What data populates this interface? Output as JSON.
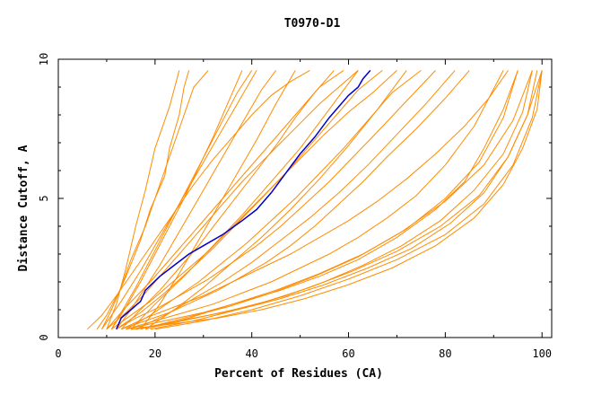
{
  "chart_data": {
    "type": "line",
    "title": "T0970-D1",
    "xlabel": "Percent of Residues (CA)",
    "ylabel": "Distance Cutoff, A",
    "xlim": [
      0,
      102
    ],
    "ylim": [
      0,
      10
    ],
    "x_ticks": [
      "0",
      "20",
      "40",
      "60",
      "80",
      "100"
    ],
    "y_ticks": [
      "0",
      "5",
      "10"
    ],
    "grid": false,
    "legend": "none",
    "colors": {
      "models": "#ff8c00",
      "highlight": "#0000cc"
    },
    "highlight_series": {
      "x": [
        12,
        13,
        15,
        17,
        18,
        21,
        24,
        27,
        30,
        34,
        38,
        41,
        44,
        47,
        50,
        53,
        56,
        58,
        60,
        62,
        63,
        64.5
      ],
      "y": [
        0.3,
        0.7,
        1.0,
        1.3,
        1.7,
        2.2,
        2.6,
        3.0,
        3.3,
        3.7,
        4.2,
        4.6,
        5.2,
        5.9,
        6.6,
        7.2,
        7.9,
        8.3,
        8.7,
        9.0,
        9.3,
        9.6
      ]
    },
    "series": [
      {
        "x": [
          6,
          9,
          12,
          16,
          20,
          24,
          28,
          32,
          36,
          40,
          44,
          48,
          52
        ],
        "y": [
          0.3,
          0.8,
          1.5,
          2.5,
          3.5,
          4.5,
          5.5,
          6.4,
          7.2,
          8.0,
          8.7,
          9.2,
          9.6
        ]
      },
      {
        "x": [
          8,
          10,
          13,
          15,
          18,
          20,
          22,
          24,
          26,
          28,
          31
        ],
        "y": [
          0.3,
          0.8,
          1.8,
          2.8,
          4.0,
          5.0,
          6.0,
          7.0,
          8.0,
          9.0,
          9.6
        ]
      },
      {
        "x": [
          9,
          11,
          14,
          17,
          19,
          22,
          23,
          25,
          26,
          27
        ],
        "y": [
          0.3,
          1.0,
          2.2,
          3.5,
          4.6,
          5.8,
          6.8,
          8.0,
          9.0,
          9.6
        ]
      },
      {
        "x": [
          10,
          12,
          14,
          16,
          18,
          20,
          23,
          25
        ],
        "y": [
          0.3,
          1.2,
          2.5,
          4.0,
          5.3,
          6.8,
          8.3,
          9.6
        ]
      },
      {
        "x": [
          10,
          14,
          18,
          22,
          26,
          30,
          34,
          38,
          42,
          46,
          50,
          54,
          58,
          62
        ],
        "y": [
          0.3,
          0.9,
          1.6,
          2.4,
          3.2,
          4.0,
          4.8,
          5.6,
          6.3,
          7.0,
          7.7,
          8.4,
          9.0,
          9.6
        ]
      },
      {
        "x": [
          11,
          15,
          19,
          23,
          27,
          31,
          35,
          39,
          43,
          47,
          51,
          55,
          60,
          65,
          70
        ],
        "y": [
          0.3,
          0.8,
          1.3,
          1.9,
          2.5,
          3.1,
          3.8,
          4.5,
          5.2,
          5.9,
          6.6,
          7.3,
          8.1,
          8.8,
          9.6
        ]
      },
      {
        "x": [
          11,
          13,
          16,
          19,
          22,
          25,
          28,
          31,
          34,
          37,
          40
        ],
        "y": [
          0.3,
          0.9,
          1.8,
          2.8,
          3.8,
          4.8,
          5.8,
          6.8,
          7.8,
          8.8,
          9.6
        ]
      },
      {
        "x": [
          12,
          15,
          18,
          21,
          24,
          27,
          30,
          33,
          36,
          39,
          42,
          45
        ],
        "y": [
          0.3,
          1.0,
          1.8,
          2.6,
          3.5,
          4.4,
          5.3,
          6.2,
          7.1,
          8.0,
          8.9,
          9.6
        ]
      },
      {
        "x": [
          12,
          16,
          21,
          26,
          31,
          36,
          41,
          46,
          51,
          56,
          61,
          66,
          72,
          78
        ],
        "y": [
          0.3,
          0.7,
          1.1,
          1.6,
          2.1,
          2.7,
          3.3,
          4.0,
          4.8,
          5.6,
          6.5,
          7.4,
          8.5,
          9.6
        ]
      },
      {
        "x": [
          13,
          18,
          23,
          28,
          33,
          38,
          43,
          48,
          53,
          58,
          63,
          68,
          74,
          80,
          85
        ],
        "y": [
          0.3,
          0.6,
          0.9,
          1.3,
          1.7,
          2.2,
          2.7,
          3.3,
          4.0,
          4.8,
          5.6,
          6.5,
          7.5,
          8.6,
          9.6
        ]
      },
      {
        "x": [
          13,
          17,
          21,
          25,
          29,
          33,
          37,
          41,
          45,
          49,
          53,
          57
        ],
        "y": [
          0.3,
          1.0,
          1.7,
          2.5,
          3.3,
          4.2,
          5.1,
          6.0,
          6.9,
          7.9,
          8.8,
          9.6
        ]
      },
      {
        "x": [
          14,
          20,
          26,
          32,
          38,
          44,
          50,
          56,
          62,
          68,
          74,
          80,
          86,
          92
        ],
        "y": [
          0.3,
          0.6,
          0.9,
          1.2,
          1.6,
          2.0,
          2.5,
          3.0,
          3.6,
          4.3,
          5.1,
          6.2,
          7.6,
          9.6
        ]
      },
      {
        "x": [
          14,
          22,
          30,
          38,
          46,
          54,
          62,
          70,
          78,
          84,
          88,
          92,
          95
        ],
        "y": [
          0.3,
          0.6,
          0.9,
          1.3,
          1.7,
          2.2,
          2.8,
          3.6,
          4.6,
          5.6,
          6.8,
          8.2,
          9.6
        ]
      },
      {
        "x": [
          15,
          23,
          31,
          39,
          47,
          55,
          63,
          71,
          79,
          86,
          92,
          96,
          98
        ],
        "y": [
          0.3,
          0.5,
          0.8,
          1.1,
          1.5,
          2.0,
          2.6,
          3.3,
          4.2,
          5.3,
          6.6,
          8.1,
          9.6
        ]
      },
      {
        "x": [
          15,
          24,
          33,
          42,
          51,
          60,
          69,
          78,
          86,
          92,
          96,
          99,
          100
        ],
        "y": [
          0.3,
          0.5,
          0.7,
          1.0,
          1.4,
          1.9,
          2.5,
          3.3,
          4.3,
          5.5,
          6.8,
          8.2,
          9.6
        ]
      },
      {
        "x": [
          16,
          25,
          34,
          43,
          52,
          61,
          70,
          79,
          87,
          93,
          97,
          99
        ],
        "y": [
          0.3,
          0.6,
          0.9,
          1.3,
          1.8,
          2.4,
          3.1,
          4.0,
          5.1,
          6.5,
          8.0,
          9.6
        ]
      },
      {
        "x": [
          16,
          22,
          28,
          34,
          40,
          46,
          52,
          58,
          64,
          70,
          76,
          82
        ],
        "y": [
          0.3,
          0.8,
          1.4,
          2.0,
          2.7,
          3.5,
          4.3,
          5.2,
          6.2,
          7.3,
          8.4,
          9.6
        ]
      },
      {
        "x": [
          17,
          21,
          25,
          29,
          33,
          37,
          41,
          45,
          49
        ],
        "y": [
          0.3,
          1.2,
          2.3,
          3.5,
          4.7,
          5.9,
          7.1,
          8.4,
          9.6
        ]
      },
      {
        "x": [
          17,
          26,
          35,
          44,
          53,
          62,
          71,
          80,
          88,
          94,
          98
        ],
        "y": [
          0.3,
          0.7,
          1.1,
          1.6,
          2.2,
          2.9,
          3.8,
          4.9,
          6.2,
          7.8,
          9.6
        ]
      },
      {
        "x": [
          18,
          27,
          36,
          45,
          54,
          63,
          72,
          80,
          87,
          92,
          95
        ],
        "y": [
          0.3,
          0.7,
          1.2,
          1.7,
          2.3,
          3.0,
          3.9,
          5.0,
          6.3,
          7.9,
          9.6
        ]
      },
      {
        "x": [
          18,
          24,
          30,
          36,
          42,
          48,
          54,
          60,
          66,
          72
        ],
        "y": [
          0.3,
          1.0,
          1.8,
          2.7,
          3.6,
          4.6,
          5.7,
          6.9,
          8.2,
          9.6
        ]
      },
      {
        "x": [
          19,
          28,
          37,
          46,
          55,
          64,
          73,
          81,
          88,
          93,
          97,
          100
        ],
        "y": [
          0.3,
          0.6,
          1.0,
          1.4,
          1.9,
          2.5,
          3.2,
          4.1,
          5.2,
          6.5,
          8.0,
          9.6
        ]
      },
      {
        "x": [
          9,
          13,
          17,
          21,
          25,
          29,
          33,
          37,
          41
        ],
        "y": [
          0.3,
          1.3,
          2.4,
          3.6,
          4.8,
          6.0,
          7.2,
          8.4,
          9.6
        ]
      },
      {
        "x": [
          10,
          14,
          19,
          24,
          29,
          34,
          39,
          44,
          49,
          54,
          59
        ],
        "y": [
          0.3,
          1.1,
          2.0,
          3.0,
          4.0,
          5.0,
          6.0,
          7.0,
          8.0,
          9.0,
          9.6
        ]
      },
      {
        "x": [
          12,
          17,
          22,
          27,
          32,
          37,
          42,
          47,
          52,
          57,
          62,
          67
        ],
        "y": [
          0.3,
          0.9,
          1.6,
          2.4,
          3.2,
          4.1,
          5.0,
          5.9,
          6.9,
          7.9,
          8.9,
          9.6
        ]
      },
      {
        "x": [
          14,
          19,
          24,
          29,
          34,
          39,
          44,
          49,
          54,
          59,
          64,
          69,
          75
        ],
        "y": [
          0.3,
          0.8,
          1.4,
          2.0,
          2.7,
          3.4,
          4.2,
          5.0,
          5.9,
          6.8,
          7.8,
          8.8,
          9.6
        ]
      },
      {
        "x": [
          20,
          30,
          40,
          50,
          60,
          70,
          80,
          88,
          94,
          98,
          100
        ],
        "y": [
          0.3,
          0.6,
          1.0,
          1.5,
          2.1,
          2.8,
          3.7,
          4.8,
          6.2,
          7.9,
          9.6
        ]
      },
      {
        "x": [
          11,
          14,
          17,
          20,
          23,
          26,
          29,
          32,
          35,
          38
        ],
        "y": [
          0.3,
          1.1,
          2.0,
          3.0,
          4.0,
          5.0,
          6.1,
          7.2,
          8.4,
          9.6
        ]
      },
      {
        "x": [
          13,
          18,
          24,
          30,
          36,
          42,
          48,
          54,
          60,
          66,
          72,
          78,
          84,
          89,
          93
        ],
        "y": [
          0.3,
          0.7,
          1.1,
          1.5,
          2.0,
          2.5,
          3.0,
          3.6,
          4.2,
          4.9,
          5.7,
          6.6,
          7.6,
          8.6,
          9.6
        ]
      },
      {
        "x": [
          15,
          20,
          26,
          32,
          38,
          44,
          50,
          56,
          62
        ],
        "y": [
          0.3,
          1.2,
          2.2,
          3.3,
          4.4,
          5.6,
          6.8,
          8.2,
          9.6
        ]
      }
    ]
  }
}
